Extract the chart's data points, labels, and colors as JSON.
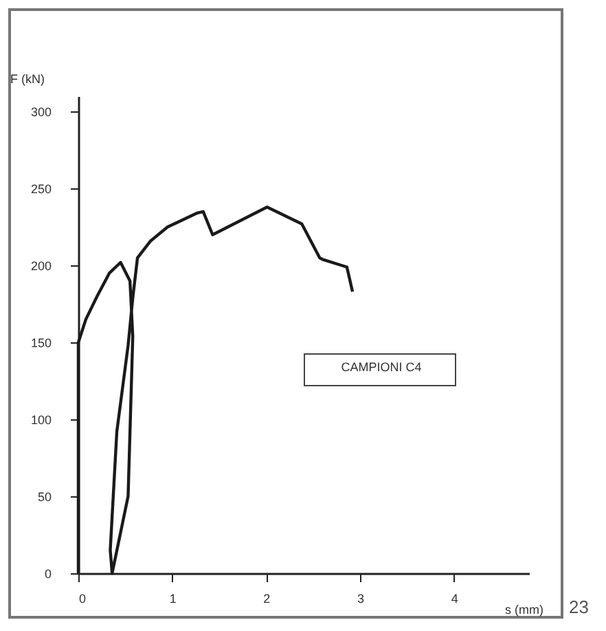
{
  "chart_data": {
    "type": "line",
    "xlabel": "s (mm)",
    "ylabel": "F (kN)",
    "annotations": [
      "CAMPIONI C4",
      "23"
    ],
    "xlim": [
      0,
      4.8
    ],
    "xticks": [
      0,
      1,
      2,
      3,
      4
    ],
    "ylim": [
      0,
      310
    ],
    "yticks": [
      0,
      50,
      100,
      150,
      200,
      250,
      300
    ],
    "grid": false,
    "series": [
      {
        "color": "#1a1a1a",
        "x": [
          0,
          0,
          0.08,
          0.2,
          0.33,
          0.45,
          0.55,
          0.58,
          0.53,
          0.36,
          0.34,
          0.41,
          0.53,
          0.58,
          0.63,
          0.77,
          0.95,
          1.26,
          1.33,
          1.43,
          2.01,
          2.38,
          2.57,
          2.6,
          2.86,
          2.92
        ],
        "values": [
          0,
          150,
          165,
          180,
          195,
          202,
          190,
          154,
          50,
          0,
          15,
          92,
          148,
          179,
          205,
          216,
          225,
          234,
          235,
          220,
          238,
          227,
          205,
          204,
          199,
          183
        ]
      }
    ]
  }
}
